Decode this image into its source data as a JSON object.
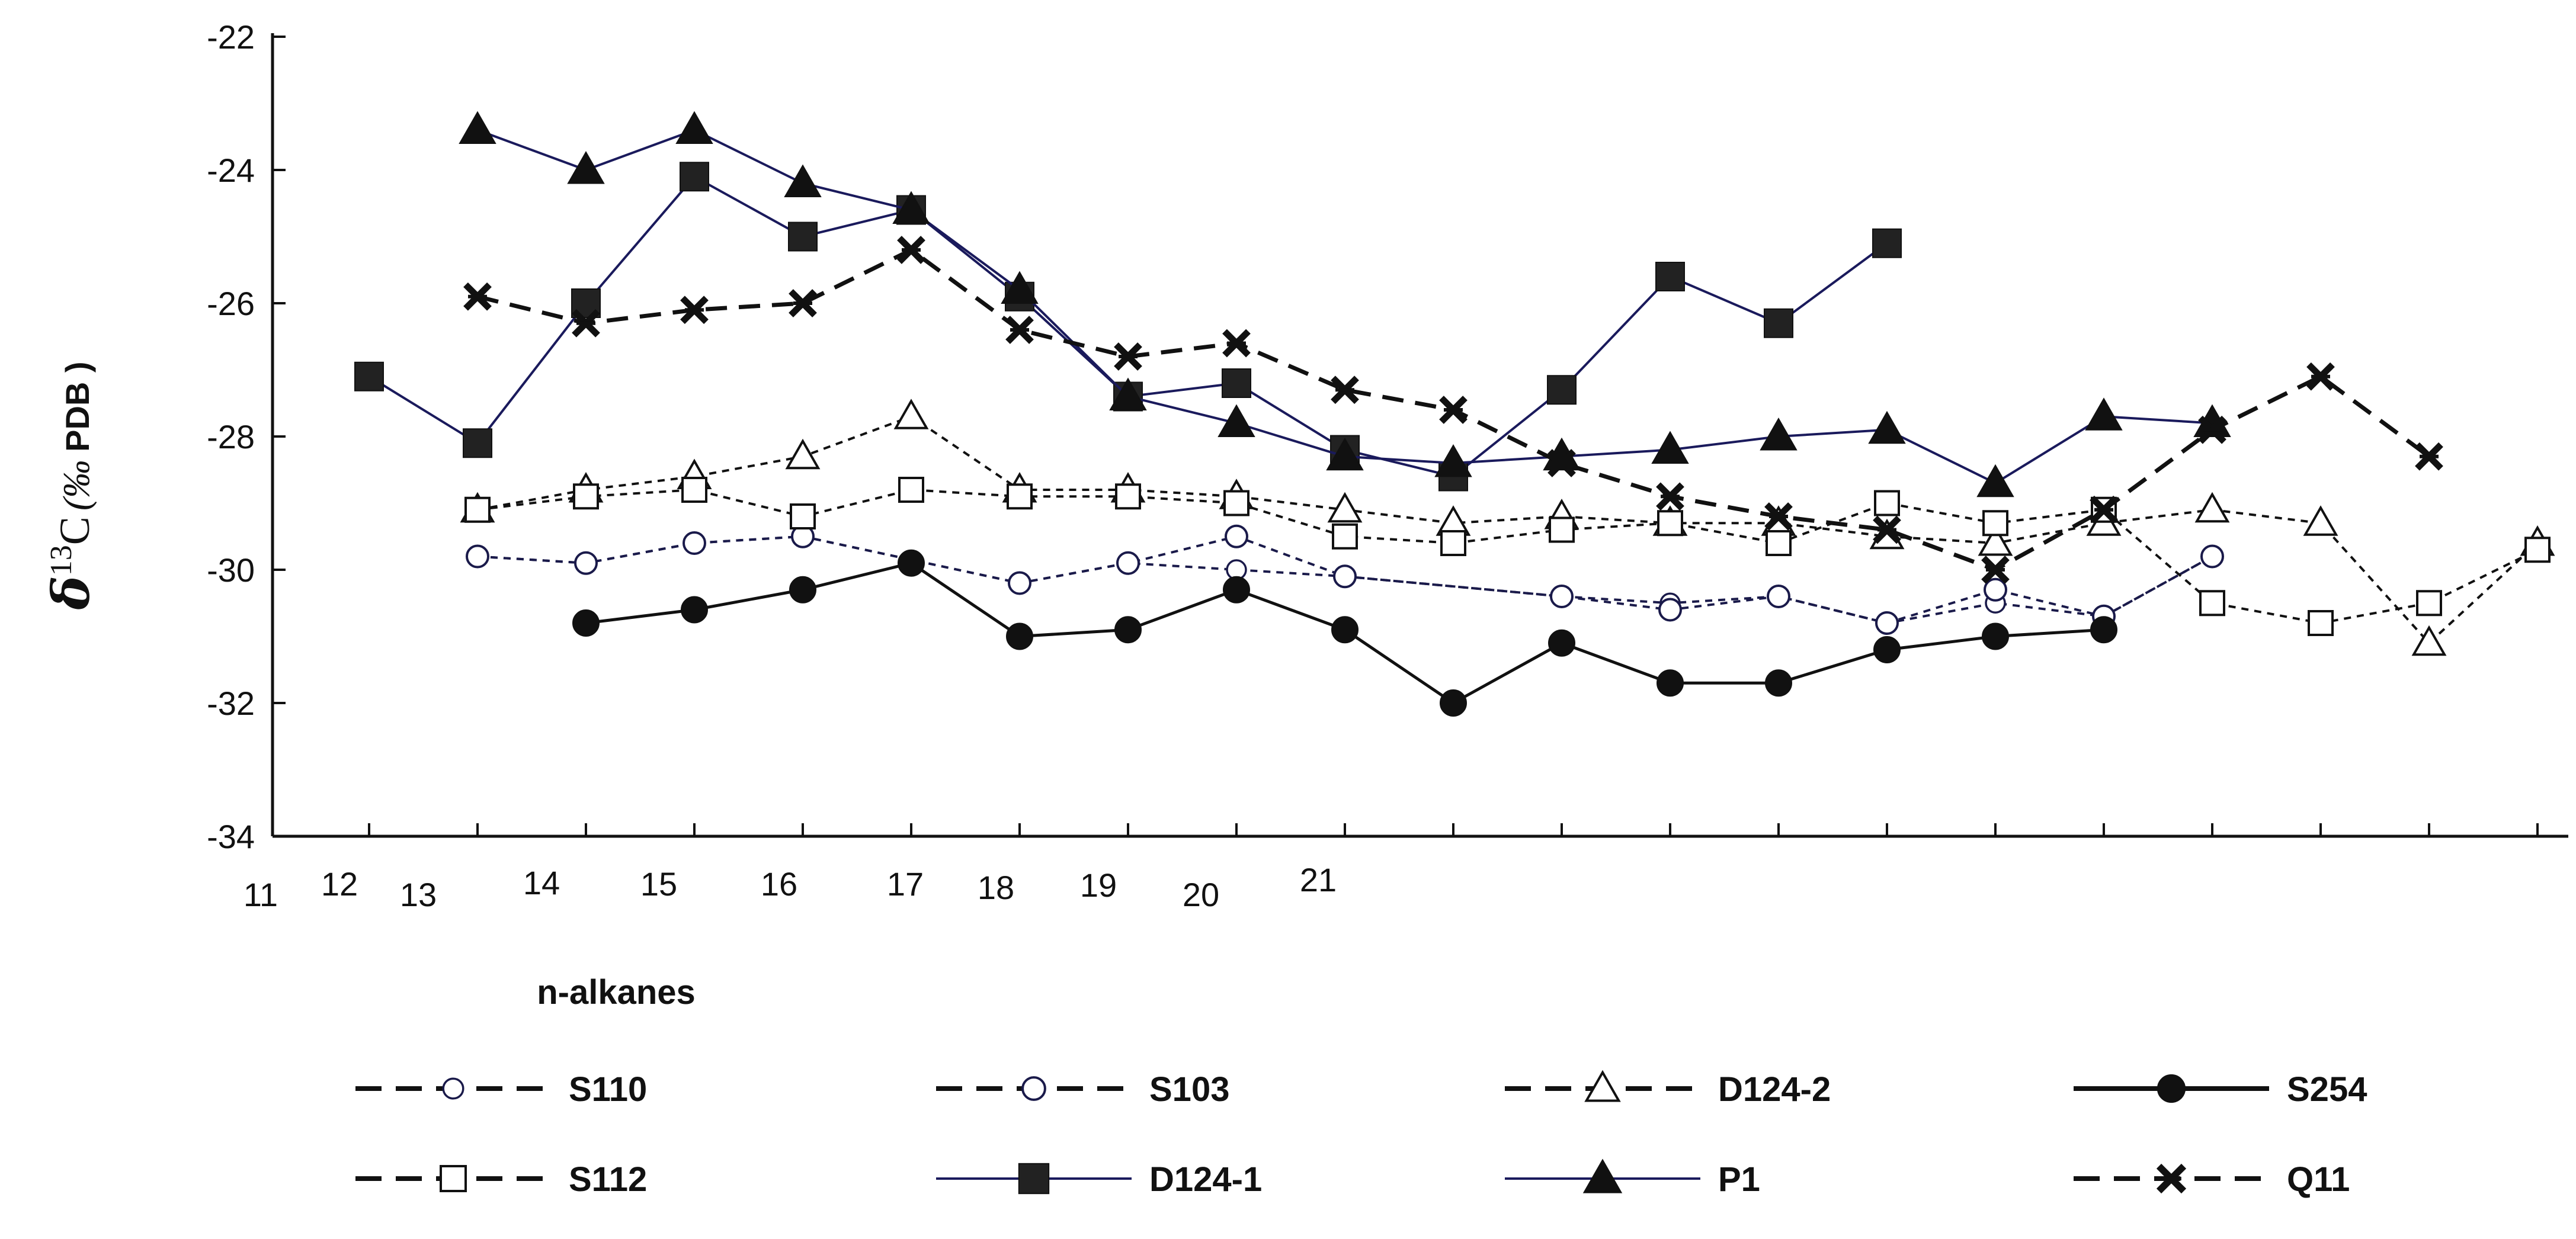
{
  "chart_data": {
    "type": "line",
    "title": "",
    "xlabel": "n-alkanes",
    "ylabel": {
      "symbol": "δ",
      "superscript": "13",
      "element": "C",
      "unit": "(‰",
      "reference": "PDB )"
    },
    "ylim": [
      -34,
      -22
    ],
    "yticks": [
      -22,
      -24,
      -26,
      -28,
      -30,
      -32,
      -34
    ],
    "xlim": [
      11,
      33
    ],
    "xticks_labeled": [
      11,
      12,
      13,
      14,
      15,
      16,
      17,
      18,
      19,
      20,
      21
    ],
    "grid": false,
    "legend_position": "bottom",
    "series": [
      {
        "name": "S110",
        "line": "dashed",
        "marker": "circle-open-small",
        "color": "#1a1a4a",
        "x": [
          13,
          14,
          15,
          16,
          18,
          19,
          20,
          21,
          23,
          24,
          25,
          26,
          27,
          28,
          29
        ],
        "y": [
          -29.8,
          -29.9,
          -29.6,
          -29.5,
          -30.2,
          -29.9,
          -30.0,
          -30.1,
          -30.4,
          -30.5,
          -30.4,
          -30.8,
          -30.5,
          -30.7,
          -29.8
        ]
      },
      {
        "name": "S103",
        "line": "dashed",
        "marker": "circle-open",
        "color": "#1a1a4a",
        "x": [
          13,
          14,
          15,
          16,
          18,
          19,
          20,
          21,
          23,
          24,
          25,
          26,
          27,
          28,
          29
        ],
        "y": [
          -29.8,
          -29.9,
          -29.6,
          -29.5,
          -30.2,
          -29.9,
          -29.5,
          -30.1,
          -30.4,
          -30.6,
          -30.4,
          -30.8,
          -30.3,
          -30.7,
          -29.8
        ]
      },
      {
        "name": "D124-2",
        "line": "dashed",
        "marker": "triangle-open",
        "color": "#111111",
        "x": [
          13,
          14,
          15,
          16,
          17,
          18,
          19,
          20,
          21,
          22,
          23,
          24,
          25,
          26,
          27,
          28,
          29,
          30,
          31,
          32
        ],
        "y": [
          -29.1,
          -28.8,
          -28.6,
          -28.3,
          -27.7,
          -28.8,
          -28.8,
          -28.9,
          -29.1,
          -29.3,
          -29.2,
          -29.3,
          -29.3,
          -29.5,
          -29.6,
          -29.3,
          -29.1,
          -29.3,
          -31.1,
          -29.6
        ]
      },
      {
        "name": "S254",
        "line": "solid",
        "marker": "circle-filled",
        "color": "#111111",
        "x": [
          14,
          15,
          16,
          17,
          18,
          19,
          20,
          21,
          22,
          23,
          24,
          25,
          26,
          27,
          28
        ],
        "y": [
          -30.8,
          -30.6,
          -30.3,
          -29.9,
          -31.0,
          -30.9,
          -30.3,
          -30.9,
          -32.0,
          -31.1,
          -31.7,
          -31.7,
          -31.2,
          -31.0,
          -30.9
        ]
      },
      {
        "name": "S112",
        "line": "dashed",
        "marker": "square-open",
        "color": "#111111",
        "x": [
          13,
          14,
          15,
          16,
          17,
          18,
          19,
          20,
          21,
          22,
          23,
          24,
          25,
          26,
          27,
          28,
          29,
          30,
          31,
          32
        ],
        "y": [
          -29.1,
          -28.9,
          -28.8,
          -29.2,
          -28.8,
          -28.9,
          -28.9,
          -29.0,
          -29.5,
          -29.6,
          -29.4,
          -29.3,
          -29.6,
          -29.0,
          -29.3,
          -29.1,
          -30.5,
          -30.8,
          -30.5,
          -29.7
        ]
      },
      {
        "name": "D124-1",
        "line": "solid",
        "marker": "square-filled",
        "color": "#1a1a5c",
        "x": [
          12,
          13,
          14,
          15,
          16,
          17,
          18,
          19,
          20,
          21,
          22,
          23,
          24,
          25,
          26
        ],
        "y": [
          -27.1,
          -28.1,
          -26.0,
          -24.1,
          -25.0,
          -24.6,
          -25.9,
          -27.4,
          -27.2,
          -28.2,
          -28.6,
          -27.3,
          -25.6,
          -26.3,
          -25.1
        ]
      },
      {
        "name": "P1",
        "line": "solid",
        "marker": "triangle-filled",
        "color": "#1a1a5c",
        "x": [
          13,
          14,
          15,
          16,
          17,
          18,
          19,
          20,
          21,
          22,
          23,
          24,
          25,
          26,
          27,
          28,
          29
        ],
        "y": [
          -23.4,
          -24.0,
          -23.4,
          -24.2,
          -24.6,
          -25.8,
          -27.4,
          -27.8,
          -28.3,
          -28.4,
          -28.3,
          -28.2,
          -28.0,
          -27.9,
          -28.7,
          -27.7,
          -27.8
        ]
      },
      {
        "name": "Q11",
        "line": "dashed",
        "marker": "star-x",
        "color": "#111111",
        "x": [
          13,
          14,
          15,
          16,
          17,
          18,
          19,
          20,
          21,
          22,
          23,
          24,
          25,
          26,
          27,
          28,
          29,
          30,
          31
        ],
        "y": [
          -25.9,
          -26.3,
          -26.1,
          -26.0,
          -25.2,
          -26.4,
          -26.8,
          -26.6,
          -27.3,
          -27.6,
          -28.4,
          -28.9,
          -29.2,
          -29.4,
          -30.0,
          -29.1,
          -27.9,
          -27.1,
          -28.3
        ]
      }
    ]
  }
}
